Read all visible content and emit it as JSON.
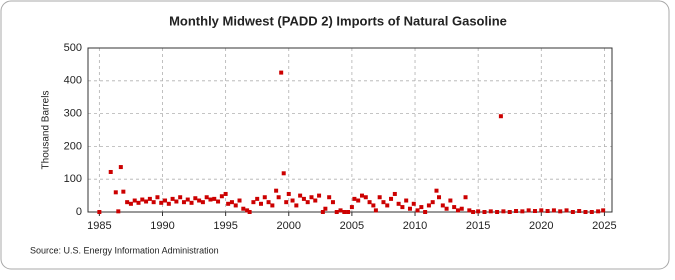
{
  "chart_data": {
    "type": "scatter",
    "title": "Monthly Midwest (PADD 2) Imports of Natural Gasoline",
    "y_label": "Thousand Barrels",
    "source": "Source: U.S. Energy Information Administration",
    "color": "#cc0000",
    "grid": true,
    "xlim": [
      1984.1,
      2025.6
    ],
    "ylim": [
      0,
      500
    ],
    "xticks": [
      1985,
      1990,
      1995,
      2000,
      2005,
      2010,
      2015,
      2020,
      2025
    ],
    "yticks": [
      0,
      100,
      200,
      300,
      400,
      500
    ],
    "x": [
      1985.0,
      1985.9,
      1986.3,
      1986.5,
      1986.7,
      1986.9,
      1987.2,
      1987.5,
      1987.8,
      1988.1,
      1988.4,
      1988.7,
      1989.0,
      1989.3,
      1989.6,
      1989.9,
      1990.2,
      1990.5,
      1990.8,
      1991.1,
      1991.4,
      1991.7,
      1992.0,
      1992.3,
      1992.6,
      1992.9,
      1993.2,
      1993.5,
      1993.8,
      1994.1,
      1994.4,
      1994.7,
      1995.0,
      1995.2,
      1995.5,
      1995.8,
      1996.1,
      1996.4,
      1996.7,
      1996.9,
      1997.2,
      1997.5,
      1997.8,
      1998.1,
      1998.4,
      1998.7,
      1999.0,
      1999.2,
      1999.4,
      1999.6,
      1999.8,
      2000.0,
      2000.3,
      2000.6,
      2000.9,
      2001.2,
      2001.5,
      2001.8,
      2002.1,
      2002.4,
      2002.7,
      2002.9,
      2003.2,
      2003.5,
      2003.8,
      2004.1,
      2004.4,
      2004.7,
      2005.0,
      2005.2,
      2005.5,
      2005.8,
      2006.1,
      2006.4,
      2006.7,
      2006.9,
      2007.2,
      2007.5,
      2007.8,
      2008.1,
      2008.4,
      2008.7,
      2009.0,
      2009.3,
      2009.6,
      2009.9,
      2010.2,
      2010.5,
      2010.8,
      2011.1,
      2011.4,
      2011.7,
      2011.9,
      2012.2,
      2012.5,
      2012.8,
      2013.1,
      2013.4,
      2013.7,
      2014.0,
      2014.3,
      2014.6,
      2015.0,
      2015.5,
      2016.0,
      2016.5,
      2016.8,
      2017.0,
      2017.5,
      2018.0,
      2018.5,
      2019.0,
      2019.5,
      2020.0,
      2020.5,
      2021.0,
      2021.5,
      2022.0,
      2022.5,
      2023.0,
      2023.5,
      2024.0,
      2024.5,
      2024.9
    ],
    "values": [
      0,
      122,
      60,
      2,
      137,
      62,
      30,
      25,
      35,
      28,
      38,
      32,
      40,
      30,
      45,
      28,
      35,
      25,
      40,
      32,
      45,
      30,
      38,
      28,
      42,
      35,
      30,
      45,
      38,
      40,
      32,
      48,
      55,
      25,
      30,
      20,
      35,
      10,
      5,
      0,
      30,
      40,
      25,
      45,
      30,
      20,
      65,
      45,
      425,
      118,
      30,
      55,
      35,
      20,
      50,
      40,
      30,
      45,
      35,
      50,
      0,
      10,
      45,
      30,
      0,
      5,
      0,
      0,
      15,
      40,
      35,
      50,
      45,
      30,
      20,
      5,
      45,
      30,
      20,
      40,
      55,
      25,
      15,
      35,
      10,
      25,
      5,
      15,
      0,
      20,
      30,
      65,
      45,
      20,
      10,
      35,
      15,
      5,
      10,
      45,
      5,
      0,
      2,
      0,
      2,
      0,
      292,
      2,
      0,
      3,
      2,
      5,
      3,
      5,
      3,
      5,
      2,
      5,
      0,
      3,
      0,
      0,
      2,
      5
    ]
  }
}
